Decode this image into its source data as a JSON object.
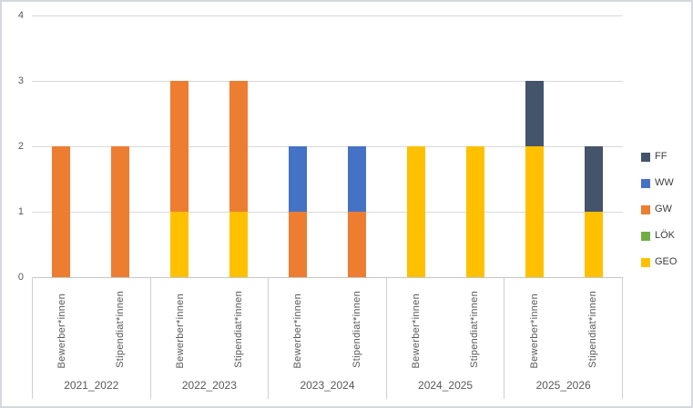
{
  "chart_data": {
    "type": "bar",
    "variant": "stacked-column",
    "title": "",
    "y_axis": {
      "min": 0,
      "max": 4,
      "ticks": [
        0,
        1,
        2,
        3,
        4
      ]
    },
    "grid": "horizontal",
    "groups": [
      "2021_2022",
      "2022_2023",
      "2023_2024",
      "2024_2025",
      "2025_2026"
    ],
    "bar_labels": [
      "Bewerber*innen",
      "Stipendiat*innen"
    ],
    "series": [
      {
        "name": "GEO",
        "color": "#FFC000",
        "values": [
          [
            0,
            0
          ],
          [
            1,
            1
          ],
          [
            0,
            0
          ],
          [
            2,
            2
          ],
          [
            2,
            1
          ]
        ]
      },
      {
        "name": "LÖK",
        "color": "#70AD47",
        "values": [
          [
            0,
            0
          ],
          [
            0,
            0
          ],
          [
            0,
            0
          ],
          [
            0,
            0
          ],
          [
            0,
            0
          ]
        ]
      },
      {
        "name": "GW",
        "color": "#ED7D31",
        "values": [
          [
            2,
            2
          ],
          [
            2,
            2
          ],
          [
            1,
            1
          ],
          [
            0,
            0
          ],
          [
            0,
            0
          ]
        ]
      },
      {
        "name": "WW",
        "color": "#4472C4",
        "values": [
          [
            0,
            0
          ],
          [
            0,
            0
          ],
          [
            1,
            1
          ],
          [
            0,
            0
          ],
          [
            0,
            0
          ]
        ]
      },
      {
        "name": "FF",
        "color": "#44546A",
        "values": [
          [
            0,
            0
          ],
          [
            0,
            0
          ],
          [
            0,
            0
          ],
          [
            0,
            0
          ],
          [
            1,
            1
          ]
        ]
      }
    ],
    "stack_order": "first-series-at-bottom",
    "bar_totals": {
      "2021_2022": [
        2,
        2
      ],
      "2022_2023": [
        3,
        3
      ],
      "2023_2024": [
        2,
        2
      ],
      "2024_2025": [
        2,
        2
      ],
      "2025_2026": [
        3,
        2
      ]
    },
    "legend": {
      "position": "right",
      "order": [
        "FF",
        "WW",
        "GW",
        "LÖK",
        "GEO"
      ]
    },
    "colors": {
      "gridline": "#D9D9D9",
      "axis_line": "#C6C6C6",
      "tick_text": "#595959",
      "legend_text": "#404040",
      "frame_border": "#D5D9DE",
      "background": "#FFFFFF"
    }
  }
}
